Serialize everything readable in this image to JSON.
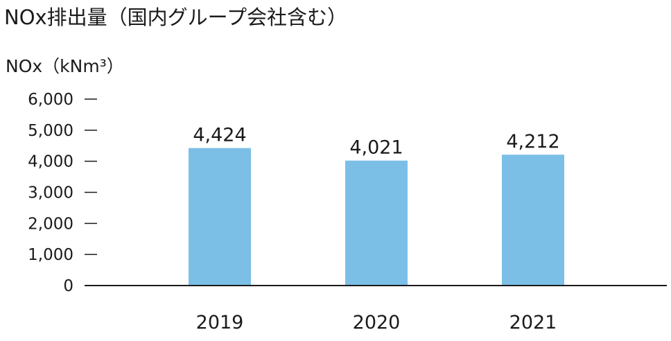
{
  "chart_data": {
    "type": "bar",
    "title": "NOx排出量（国内グループ会社含む）",
    "ylabel": "NOx（kNm³）",
    "xlabel": "",
    "categories": [
      "2019",
      "2020",
      "2021"
    ],
    "values": [
      4424,
      4021,
      4212
    ],
    "data_labels": [
      "4,424",
      "4,021",
      "4,212"
    ],
    "ylim": [
      0,
      6000
    ],
    "yticks": [
      0,
      1000,
      2000,
      3000,
      4000,
      5000,
      6000
    ],
    "ytick_labels": [
      "0",
      "1,000",
      "2,000",
      "3,000",
      "4,000",
      "5,000",
      "6,000"
    ],
    "bar_color": "#7bbfe7",
    "grid": false,
    "legend": "none"
  }
}
